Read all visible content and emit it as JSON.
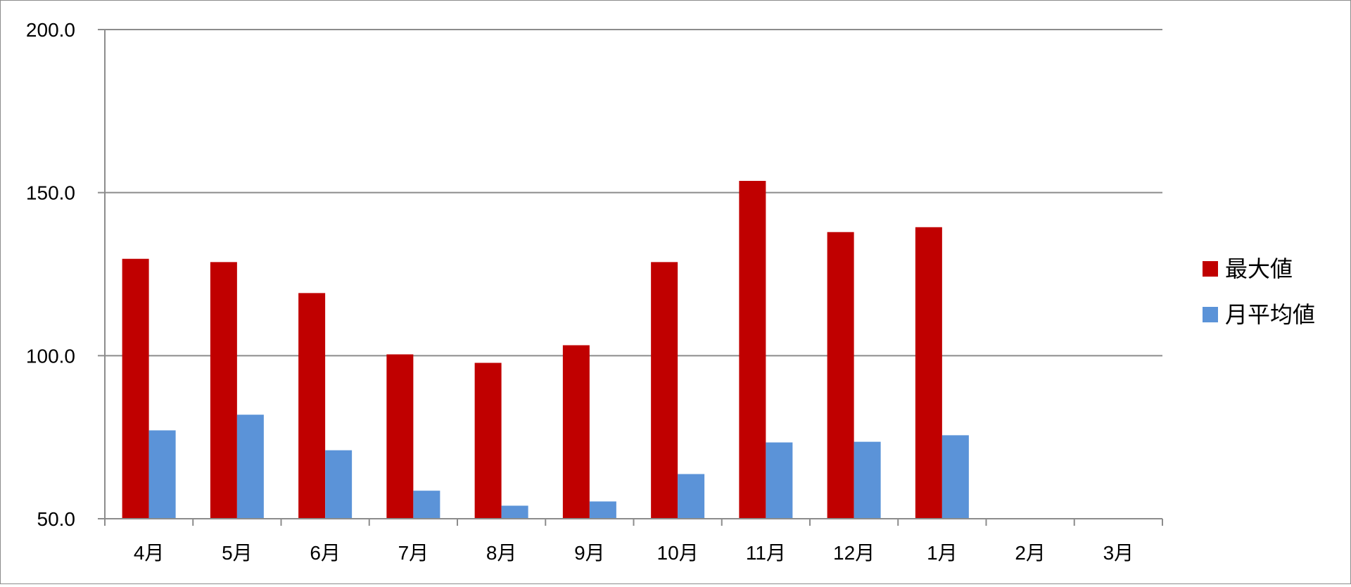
{
  "chart_data": {
    "type": "bar",
    "categories": [
      "4月",
      "5月",
      "6月",
      "7月",
      "8月",
      "9月",
      "10月",
      "11月",
      "12月",
      "1月",
      "2月",
      "3月"
    ],
    "series": [
      {
        "name": "最大値",
        "color": "#c00000",
        "values": [
          129.7,
          128.7,
          119.2,
          100.4,
          97.8,
          103.2,
          128.7,
          153.6,
          137.9,
          139.4,
          null,
          null
        ]
      },
      {
        "name": "月平均値",
        "color": "#5b93d8",
        "values": [
          77.1,
          81.9,
          71.0,
          58.6,
          54.0,
          55.3,
          63.7,
          73.4,
          73.6,
          75.6,
          null,
          null
        ]
      }
    ],
    "y_ticks": [
      "50.0",
      "100.0",
      "150.0",
      "200.0"
    ],
    "ylim": [
      50,
      200
    ],
    "grid": true,
    "legend_position": "right"
  }
}
